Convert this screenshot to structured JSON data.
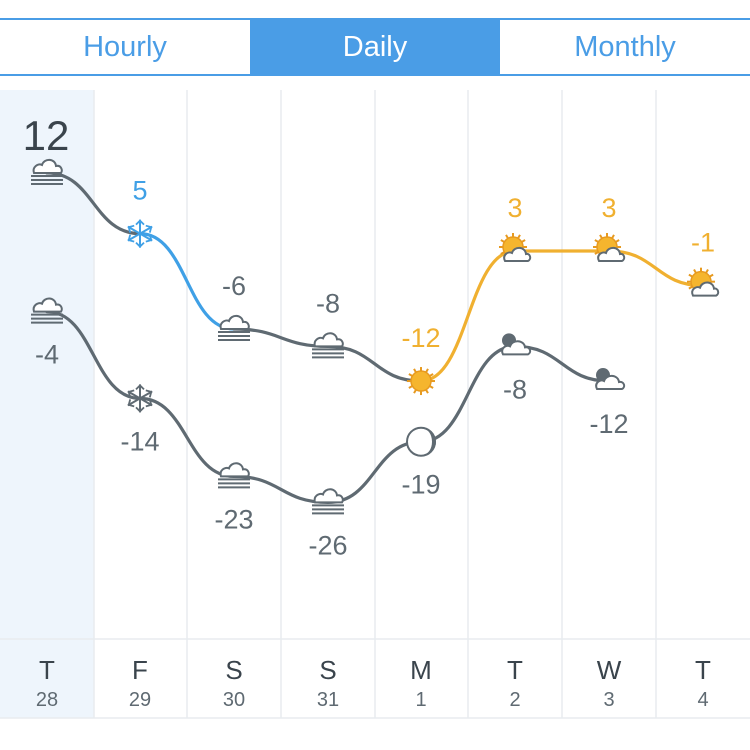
{
  "tabs": [
    {
      "label": "Hourly",
      "active": false
    },
    {
      "label": "Daily",
      "active": true
    },
    {
      "label": "Monthly",
      "active": false
    }
  ],
  "colors": {
    "accent": "#4a9de6",
    "high_line": "#5f6a72",
    "snow": "#3fa0e6",
    "sun": "#f0b030",
    "grid": "#e8ecef",
    "today_bg": "#eef5fc"
  },
  "chart_data": {
    "type": "line",
    "title": "",
    "days": [
      {
        "letter": "T",
        "date": "28",
        "high": 12,
        "low": -4,
        "high_icon": "fog-cloud-icon",
        "low_icon": "fog-cloud-icon",
        "today": true
      },
      {
        "letter": "F",
        "date": "29",
        "high": 5,
        "low": -14,
        "high_icon": "snowflake-icon",
        "low_icon": "snowflake-icon"
      },
      {
        "letter": "S",
        "date": "30",
        "high": -6,
        "low": -23,
        "high_icon": "fog-cloud-icon",
        "low_icon": "fog-cloud-icon"
      },
      {
        "letter": "S",
        "date": "31",
        "high": -8,
        "low": -26,
        "high_icon": "fog-cloud-icon",
        "low_icon": "fog-cloud-icon"
      },
      {
        "letter": "M",
        "date": "1",
        "high": -12,
        "low": -19,
        "high_icon": "sun-icon",
        "low_icon": "moon-icon"
      },
      {
        "letter": "T",
        "date": "2",
        "high": 3,
        "low": -8,
        "high_icon": "sun-cloud-icon",
        "low_icon": "moon-cloud-icon"
      },
      {
        "letter": "W",
        "date": "3",
        "high": 3,
        "low": -12,
        "high_icon": "sun-cloud-icon",
        "low_icon": "moon-cloud-icon"
      },
      {
        "letter": "T",
        "date": "4",
        "high": -1,
        "low": null,
        "high_icon": "sun-cloud-icon",
        "low_icon": null
      }
    ]
  }
}
